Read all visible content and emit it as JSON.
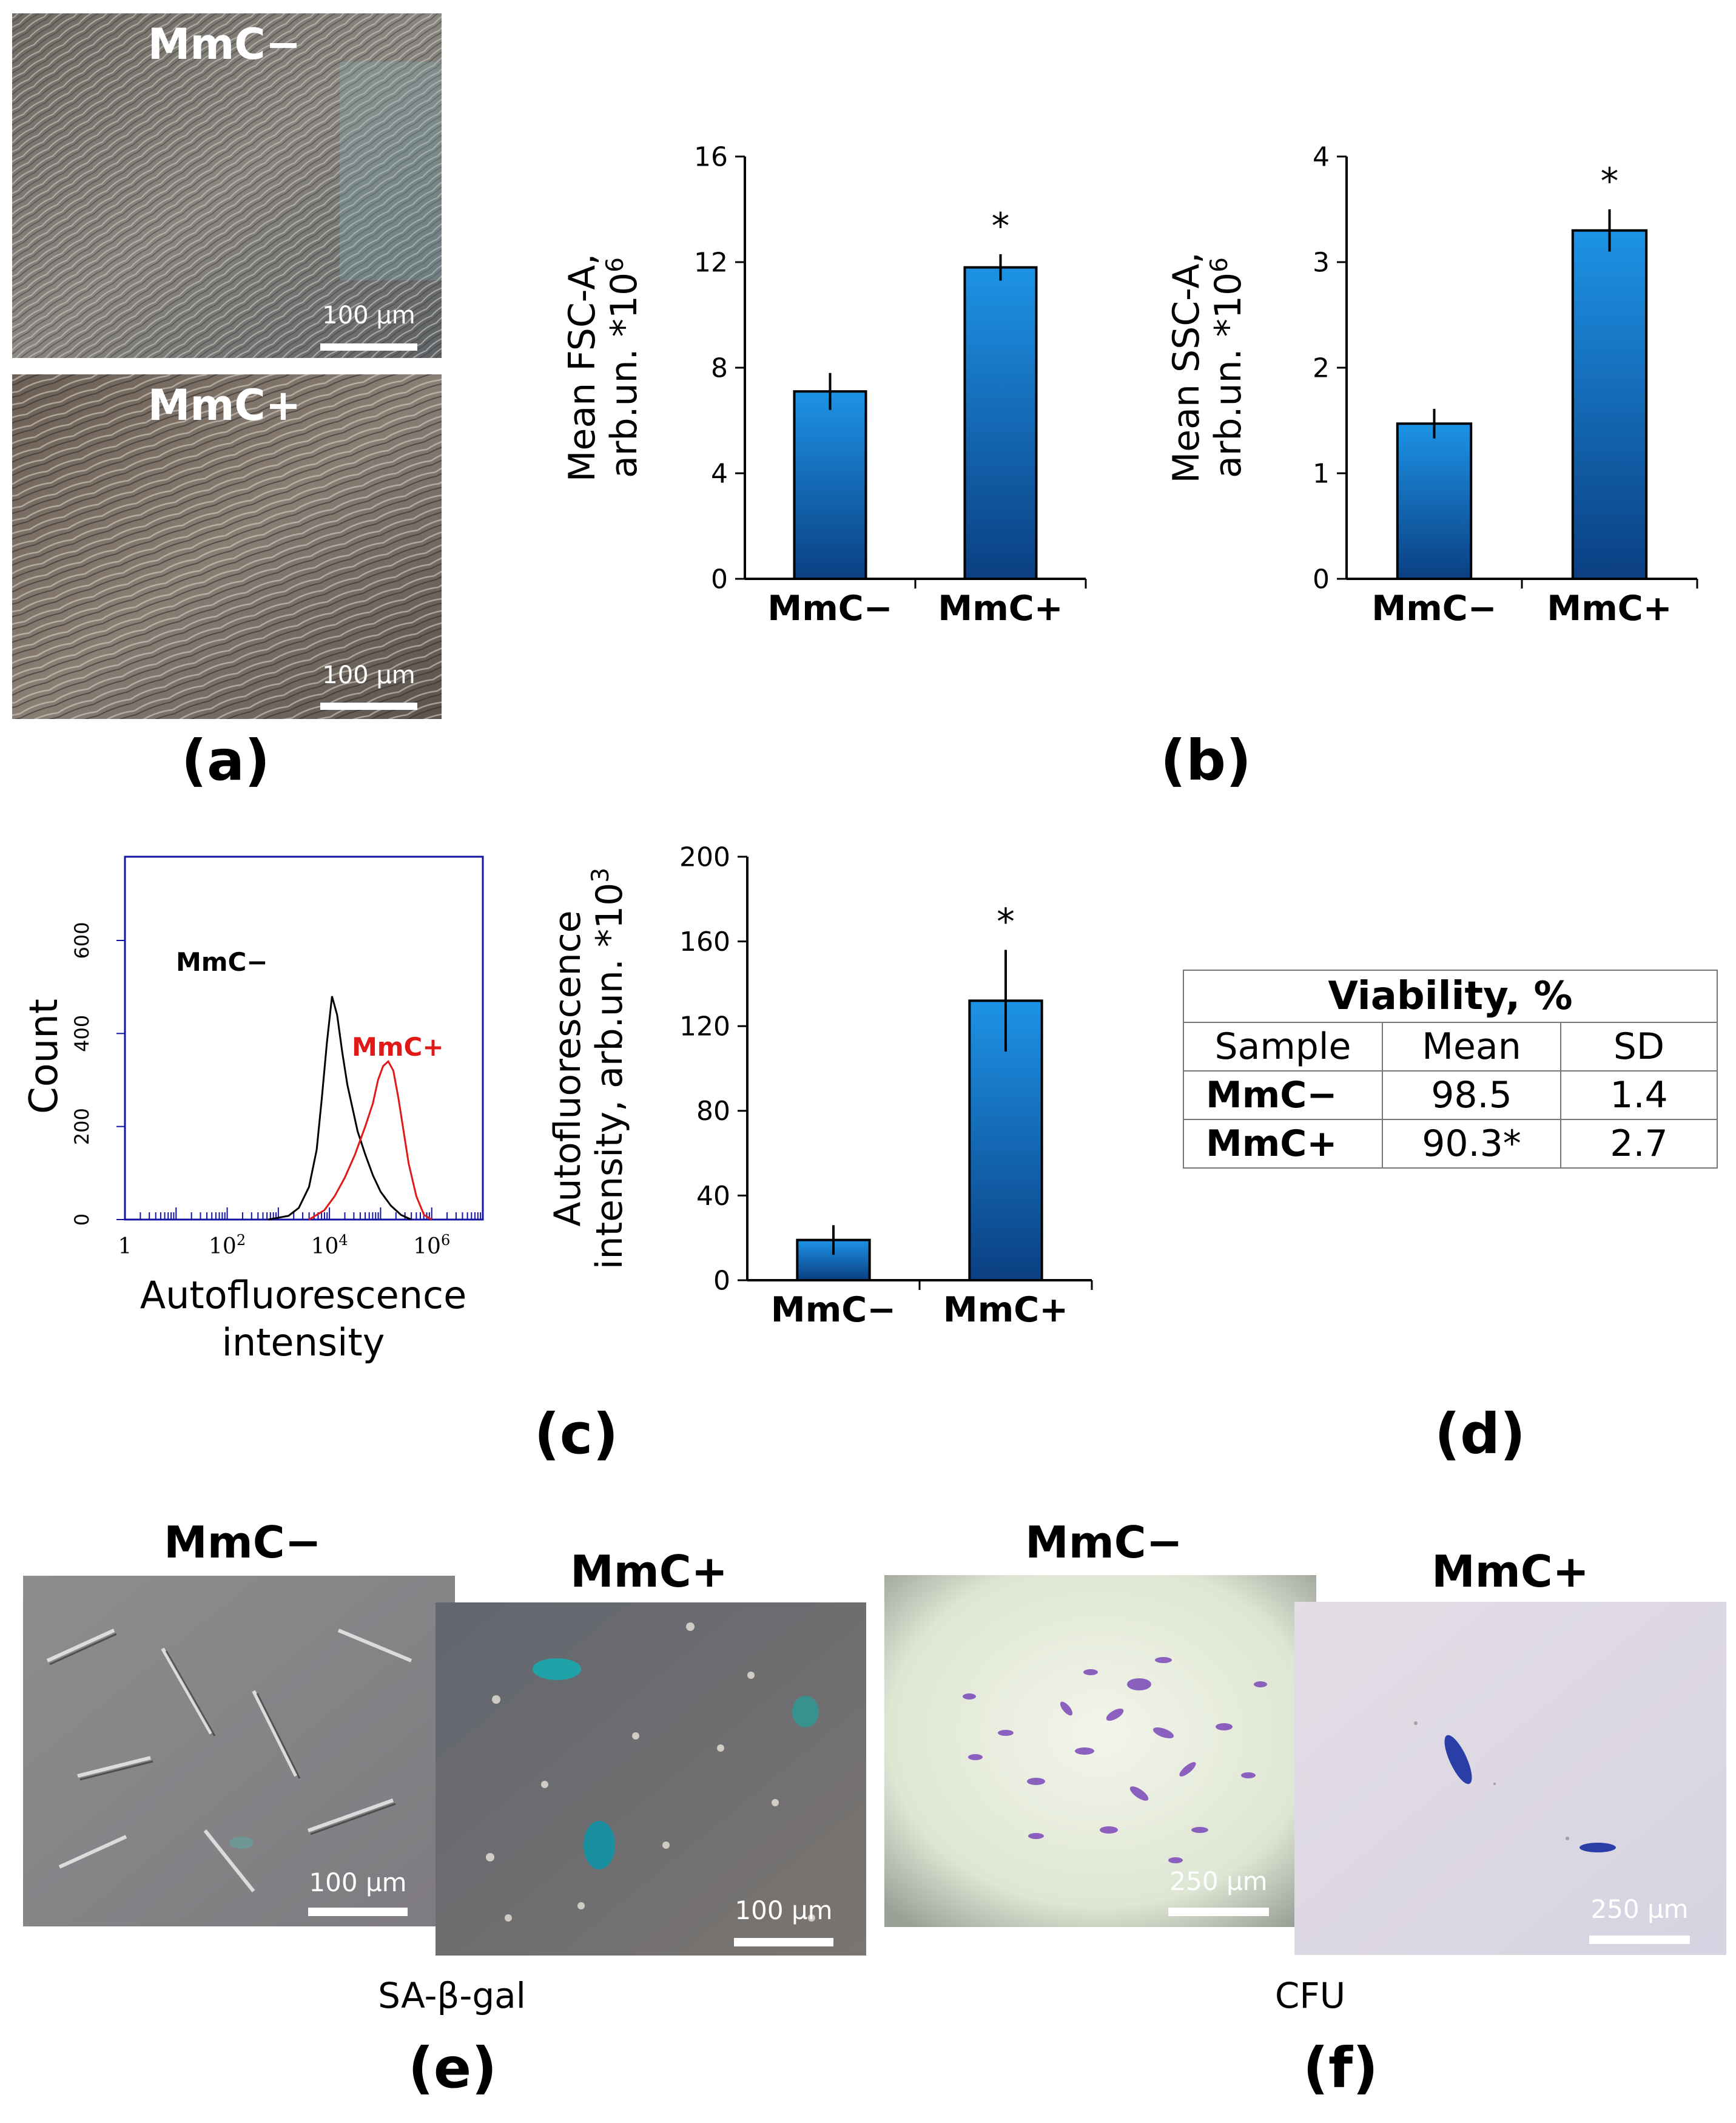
{
  "panels": {
    "a": {
      "label": "(a)",
      "images": [
        {
          "label": "MmC−",
          "scale": "100 µm"
        },
        {
          "label": "MmC+",
          "scale": "100 µm"
        }
      ]
    },
    "b": {
      "label": "(b)"
    },
    "c": {
      "label": "(c)"
    },
    "d": {
      "label": "(d)"
    },
    "e": {
      "label": "(e)",
      "caption": "SA-β-gal",
      "images": [
        {
          "label": "MmC−",
          "scale": "100 µm"
        },
        {
          "label": "MmC+",
          "scale": "100 µm"
        }
      ]
    },
    "f": {
      "label": "(f)",
      "caption": "CFU",
      "images": [
        {
          "label": "MmC−",
          "scale": "250 µm"
        },
        {
          "label": "MmC+",
          "scale": "250 µm"
        }
      ]
    }
  },
  "viability_table": {
    "title": "Viability, %",
    "headers": [
      "Sample",
      "Mean",
      "SD"
    ],
    "rows": [
      {
        "sample": "MmC−",
        "mean": "98.5",
        "sd": "1.4"
      },
      {
        "sample": "MmC+",
        "mean": "90.3*",
        "sd": "2.7"
      }
    ]
  },
  "chart_data": [
    {
      "type": "bar",
      "id": "fsc",
      "categories": [
        "MmC−",
        "MmC+"
      ],
      "values": [
        7.1,
        11.8
      ],
      "errors": [
        0.7,
        0.5
      ],
      "significance": [
        "",
        "*"
      ],
      "ylabel_line1": "Mean FSC-A,",
      "ylabel_line2": "arb.un. *10",
      "ylabel_exp": "6",
      "ylim": [
        0,
        16
      ],
      "yticks": [
        0,
        4,
        8,
        12,
        16
      ],
      "color": "#1a86d8"
    },
    {
      "type": "bar",
      "id": "ssc",
      "categories": [
        "MmC−",
        "MmC+"
      ],
      "values": [
        1.47,
        3.3
      ],
      "errors": [
        0.14,
        0.2
      ],
      "significance": [
        "",
        "*"
      ],
      "ylabel_line1": "Mean SSC-A,",
      "ylabel_line2": "arb.un. *10",
      "ylabel_exp": "6",
      "ylim": [
        0,
        4
      ],
      "yticks": [
        0,
        1,
        2,
        3,
        4
      ],
      "color": "#1a86d8"
    },
    {
      "type": "bar",
      "id": "autofluor",
      "categories": [
        "MmC−",
        "MmC+"
      ],
      "values": [
        19,
        132
      ],
      "errors": [
        7,
        24
      ],
      "significance": [
        "",
        "*"
      ],
      "ylabel_line1": "Autofluorescence",
      "ylabel_line2": "intensity, arb.un. *10",
      "ylabel_exp": "3",
      "ylim": [
        0,
        200
      ],
      "yticks": [
        0,
        40,
        80,
        120,
        160,
        200
      ],
      "color": "#1a86d8"
    },
    {
      "type": "line",
      "id": "histogram",
      "ylabel": "Count",
      "xlabel_line1": "Autofluorescence",
      "xlabel_line2": "intensity",
      "x_scale": "log",
      "xticks": [
        "1",
        "10^2",
        "10^4",
        "10^6"
      ],
      "yticks": [
        0,
        200,
        400,
        600
      ],
      "ylim": [
        0,
        780
      ],
      "series": [
        {
          "name": "MmC−",
          "color": "#000000",
          "x": [
            2.8,
            3.2,
            3.4,
            3.6,
            3.75,
            3.85,
            3.95,
            4.05,
            4.15,
            4.25,
            4.35,
            4.45,
            4.55,
            4.7,
            4.85,
            5.0,
            5.2,
            5.4,
            5.6
          ],
          "y": [
            0,
            8,
            25,
            70,
            150,
            260,
            380,
            480,
            440,
            360,
            290,
            240,
            190,
            140,
            95,
            60,
            30,
            10,
            0
          ]
        },
        {
          "name": "MmC+",
          "color": "#e01818",
          "x": [
            3.6,
            3.9,
            4.1,
            4.3,
            4.5,
            4.7,
            4.85,
            4.95,
            5.05,
            5.15,
            5.25,
            5.35,
            5.45,
            5.55,
            5.7,
            5.85,
            6.0
          ],
          "y": [
            0,
            20,
            50,
            90,
            140,
            200,
            250,
            300,
            330,
            340,
            320,
            260,
            190,
            120,
            50,
            10,
            0
          ]
        }
      ]
    }
  ]
}
